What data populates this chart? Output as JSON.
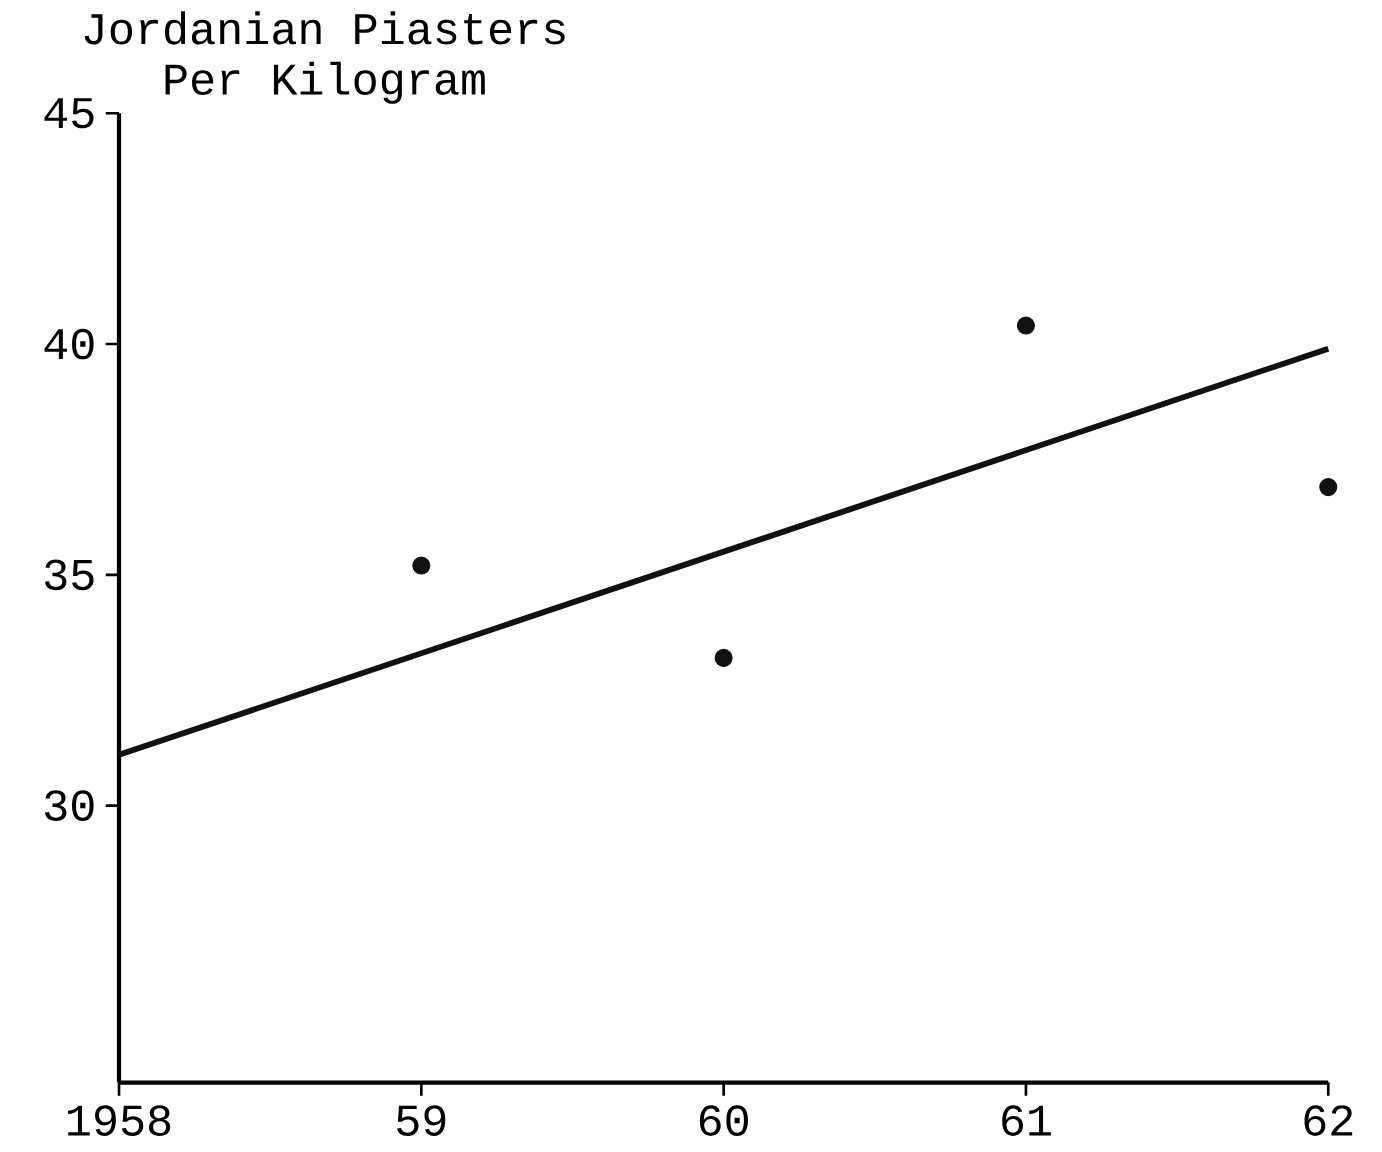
{
  "chart_data": {
    "type": "scatter",
    "ylabel": "Jordanian Piasters\nPer Kilogram",
    "x": [
      1959,
      1960,
      1961,
      1962
    ],
    "series": [
      {
        "color": "#111111",
        "marker": "circle",
        "values": [
          35.2,
          33.2,
          40.4,
          36.9
        ]
      },
      {
        "type": "line",
        "color": "#111111",
        "x": [
          1958,
          1962
        ],
        "values": [
          31.1,
          39.9
        ],
        "marker": "none",
        "line_style": "solid"
      }
    ],
    "xlim": [
      1958,
      1962
    ],
    "xticks": [
      {
        "value": 1958,
        "label": "1958"
      },
      {
        "value": 1959,
        "label": "59"
      },
      {
        "value": 1960,
        "label": "60"
      },
      {
        "value": 1961,
        "label": "61"
      },
      {
        "value": 1962,
        "label": "62"
      }
    ],
    "ylim": [
      24,
      45
    ],
    "yticks": [
      30,
      35,
      40,
      45
    ],
    "grid": false
  }
}
